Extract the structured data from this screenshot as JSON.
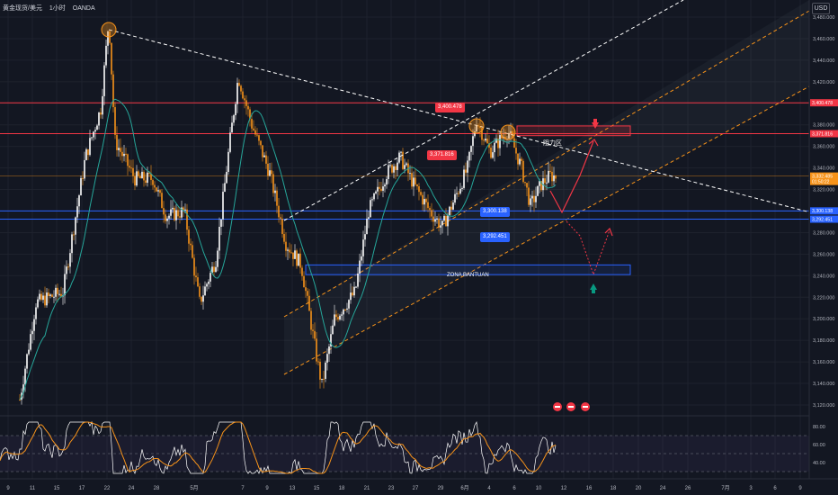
{
  "header": {
    "symbol": "黄金现货/美元",
    "interval": "1小时",
    "source": "OANDA"
  },
  "currency_button": "USD",
  "chart_data": {
    "type": "candlestick",
    "price_axis": {
      "ticks": [
        "3,480.000",
        "3,460.000",
        "3,440.000",
        "3,420.000",
        "3,400.000",
        "3,380.000",
        "3,360.000",
        "3,340.000",
        "3,320.000",
        "3,300.000",
        "3,280.000",
        "3,260.000",
        "3,240.000",
        "3,220.000",
        "3,200.000",
        "3,180.000",
        "3,160.000",
        "3,140.000",
        "3,120.000"
      ],
      "range": [
        3113,
        3493
      ]
    },
    "time_axis": {
      "ticks": [
        "9",
        "11",
        "15",
        "17",
        "22",
        "24",
        "28",
        "5月",
        "7",
        "9",
        "13",
        "15",
        "18",
        "21",
        "23",
        "27",
        "29",
        "6月",
        "4",
        "6",
        "10",
        "12",
        "16",
        "18",
        "20",
        "24",
        "26",
        "7月",
        "3",
        "6",
        "9"
      ]
    },
    "price_labels": [
      {
        "text": "3,400.478",
        "color": "red"
      },
      {
        "text": "3,371.816",
        "color": "red"
      },
      {
        "text": "3,332.485",
        "sub": "01:50:22",
        "color": "orange"
      },
      {
        "text": "3,300.138",
        "color": "blue"
      },
      {
        "text": "3,292.451",
        "color": "blue"
      }
    ],
    "chart_tags": [
      {
        "text": "3,400.478",
        "color": "red"
      },
      {
        "text": "3,371.816",
        "color": "red"
      },
      {
        "text": "3,300.138",
        "color": "blue"
      },
      {
        "text": "3,292.451",
        "color": "blue"
      }
    ],
    "horizontal_levels": [
      {
        "price": 3400.478,
        "color": "#f23645"
      },
      {
        "price": 3371.816,
        "color": "#f23645"
      },
      {
        "price": 3300.138,
        "color": "#2962ff"
      },
      {
        "price": 3292.451,
        "color": "#2962ff"
      }
    ],
    "zones": [
      {
        "label": "阻力区",
        "price_top": 3379,
        "price_bottom": 3370,
        "color": "#f23645"
      },
      {
        "label": "ZONA BANTUAN",
        "price_top": 3250,
        "price_bottom": 3241,
        "color": "#2962ff"
      }
    ],
    "rsi": {
      "ticks": [
        "80.00",
        "60.00",
        "40.00"
      ],
      "range": [
        25,
        88
      ],
      "upper_band": 70,
      "lower_band": 30
    },
    "colors": {
      "background": "#131722",
      "up": "#ffffff",
      "down": "#f7931a",
      "ma": "#26a69a",
      "rsi": "#ffffff",
      "rsi_ma": "#f7931a",
      "trend": "#ffffff",
      "channel": "#f7931a",
      "projection": "#f23645",
      "arrow_up": "#089981"
    }
  }
}
